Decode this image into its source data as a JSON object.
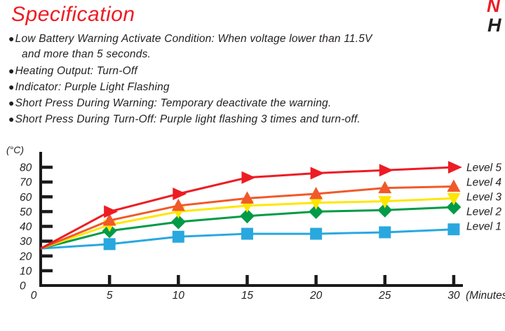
{
  "page": {
    "title": "Specification",
    "accent_color": "#ED1C24",
    "text_color": "#231F20",
    "corner_top_letter": "N",
    "corner_bottom_letter": "H"
  },
  "spec_list": {
    "bullet_glyph": "●",
    "items": [
      [
        "Low Battery Warning Activate Condition: When voltage lower than 11.5V",
        "and more than 5 seconds."
      ],
      [
        "Heating Output: Turn-Off"
      ],
      [
        "Indicator: Purple Light Flashing"
      ],
      [
        "Short Press During Warning: Temporary deactivate the warning."
      ],
      [
        "Short Press During Turn-Off: Purple light flashing 3 times and turn-off."
      ]
    ]
  },
  "chart_data": {
    "type": "line",
    "title": "",
    "ylabel": "(°C)",
    "xlabel": "(Minutes)",
    "x": [
      0,
      5,
      10,
      15,
      20,
      25,
      30
    ],
    "x_ticks": [
      0,
      5,
      10,
      15,
      20,
      25,
      30
    ],
    "y_ticks": [
      0,
      10,
      20,
      30,
      40,
      50,
      60,
      70,
      80
    ],
    "xlim": [
      0,
      30
    ],
    "ylim": [
      0,
      80
    ],
    "grid": false,
    "legend_position": "right",
    "axis_color": "#1a1a1a",
    "series": [
      {
        "name": "Level 5",
        "marker": "triangle-right",
        "color": "#ED1C24",
        "values": [
          25,
          50,
          62,
          73,
          76,
          78,
          80
        ]
      },
      {
        "name": "Level 4",
        "marker": "triangle-up",
        "color": "#F1592A",
        "values": [
          25,
          44,
          54,
          59,
          62,
          66,
          67
        ]
      },
      {
        "name": "Level 3",
        "marker": "triangle-down",
        "color": "#FFE600",
        "values": [
          25,
          41,
          50,
          54,
          56,
          57,
          59
        ]
      },
      {
        "name": "Level 2",
        "marker": "diamond",
        "color": "#009B48",
        "values": [
          25,
          37,
          43,
          47,
          50,
          51,
          53
        ]
      },
      {
        "name": "Level 1",
        "marker": "square",
        "color": "#29A8DF",
        "values": [
          25,
          28,
          33,
          35,
          35,
          36,
          38
        ]
      }
    ]
  }
}
